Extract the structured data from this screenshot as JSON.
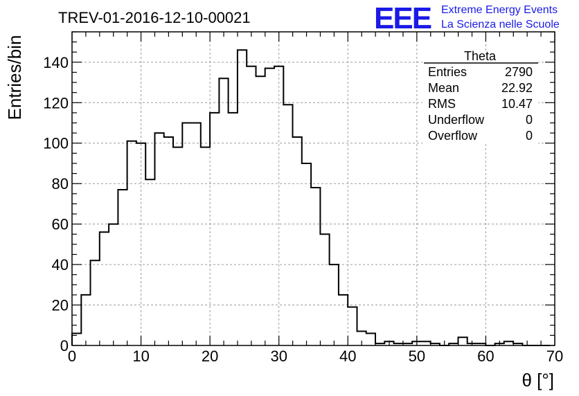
{
  "header": {
    "run_title": "TREV-01-2016-12-10-00021",
    "brand_logo": "EEE",
    "brand_line1": "Extreme Energy Events",
    "brand_line2": "La Scienza nelle Scuole"
  },
  "colors": {
    "brand": "#1a1ae6",
    "histogram_line": "#000000",
    "grid": "#9a9a9a"
  },
  "stats_box": {
    "name": "Theta",
    "rows": [
      {
        "label": "Entries",
        "value": "2790"
      },
      {
        "label": "Mean",
        "value": "22.92"
      },
      {
        "label": "RMS",
        "value": "10.47"
      },
      {
        "label": "Underflow",
        "value": "0"
      },
      {
        "label": "Overflow",
        "value": "0"
      }
    ]
  },
  "chart_data": {
    "type": "bar",
    "histogram_style": "step",
    "xlabel": "θ [°]",
    "ylabel": "Entries/bin",
    "xlim": [
      0,
      70
    ],
    "ylim": [
      0,
      155
    ],
    "xticks": [
      0,
      10,
      20,
      30,
      40,
      50,
      60,
      70
    ],
    "yticks": [
      0,
      20,
      40,
      60,
      80,
      100,
      120,
      140
    ],
    "grid": true,
    "bin_width": 1.333,
    "bin_edges_start": 0,
    "values": [
      6,
      25,
      42,
      56,
      60,
      77,
      101,
      100,
      82,
      105,
      103,
      98,
      110,
      110,
      98,
      115,
      132,
      115,
      146,
      138,
      133,
      137,
      138,
      119,
      103,
      90,
      78,
      55,
      40,
      25,
      19,
      7,
      6,
      1,
      2,
      1,
      1,
      2,
      2,
      1,
      0,
      1,
      4,
      1,
      1,
      0,
      1,
      2,
      1,
      0,
      0,
      0
    ]
  }
}
